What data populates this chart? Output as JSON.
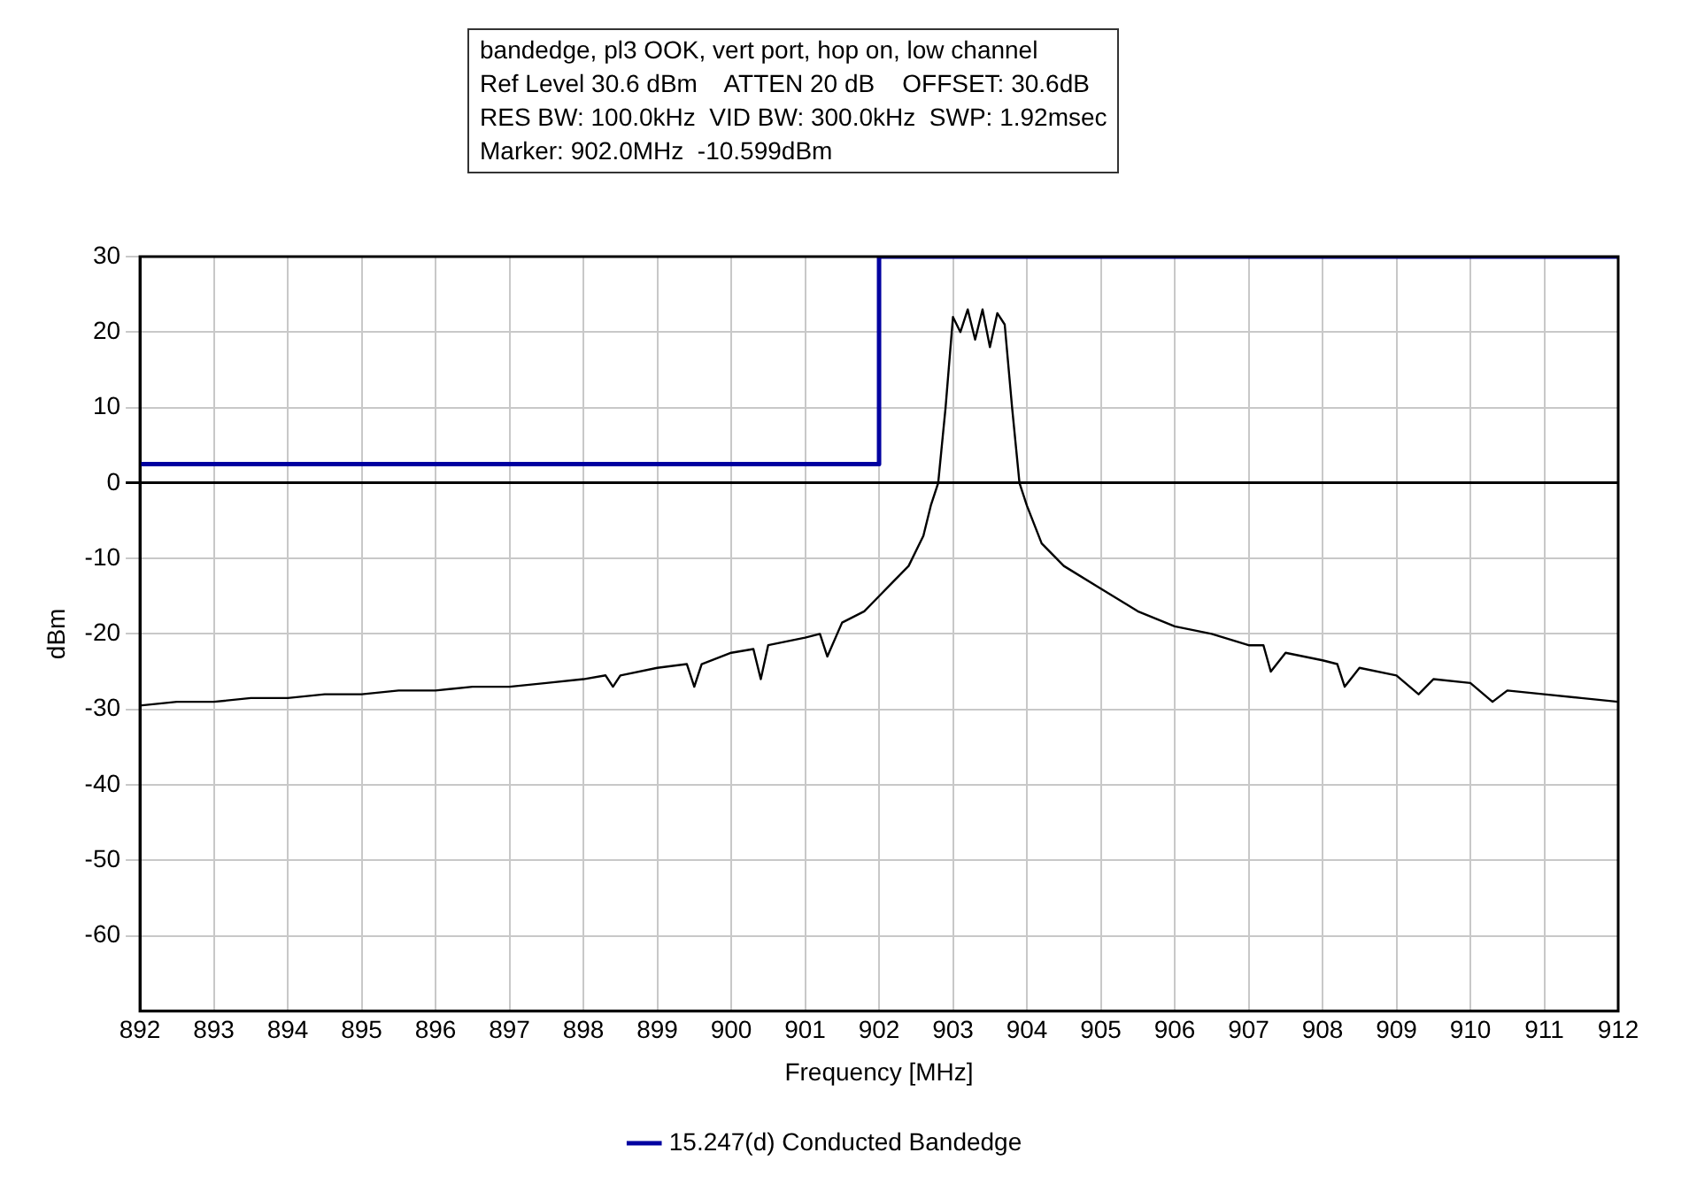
{
  "chart_data": {
    "type": "line",
    "annotations": [
      "bandedge, pl3 OOK, vert port, hop on, low channel",
      "Ref Level 30.6 dBm    ATTEN 20 dB    OFFSET: 30.6dB",
      "RES BW: 100.0kHz  VID BW: 300.0kHz  SWP: 1.92msec",
      "Marker: 902.0MHz  -10.599dBm"
    ],
    "xlabel": "Frequency [MHz]",
    "ylabel": "dBm",
    "xlim": [
      892,
      912
    ],
    "xticks": [
      892,
      893,
      894,
      895,
      896,
      897,
      898,
      899,
      900,
      901,
      902,
      903,
      904,
      905,
      906,
      907,
      908,
      909,
      910,
      911,
      912
    ],
    "ylim": [
      -70,
      30
    ],
    "yticks": [
      -60,
      -50,
      -40,
      -30,
      -20,
      -10,
      0,
      10,
      20,
      30
    ],
    "grid": true,
    "legend": "bottom",
    "marker": "none",
    "line_style": "solid",
    "series": [
      {
        "name": "15.247(d) Conducted Bandedge",
        "type": "step",
        "color": "#0000a0",
        "x": [
          892,
          902,
          912
        ],
        "values": [
          2.5,
          30,
          30
        ]
      },
      {
        "type": "line",
        "color": "#000000",
        "x": [
          892,
          892.5,
          893,
          893.5,
          894,
          894.5,
          895,
          895.5,
          896,
          896.5,
          897,
          897.5,
          898,
          898.3,
          898.4,
          898.5,
          899,
          899.4,
          899.5,
          899.6,
          900,
          900.3,
          900.4,
          900.5,
          901,
          901.2,
          901.3,
          901.5,
          901.8,
          902,
          902.2,
          902.4,
          902.6,
          902.7,
          902.8,
          902.9,
          903,
          903.1,
          903.2,
          903.3,
          903.4,
          903.5,
          903.6,
          903.7,
          903.8,
          903.9,
          904,
          904.2,
          904.5,
          905,
          905.5,
          906,
          906.5,
          907,
          907.2,
          907.3,
          907.5,
          908,
          908.2,
          908.3,
          908.5,
          909,
          909.3,
          909.5,
          910,
          910.3,
          910.5,
          911,
          911.5,
          912
        ],
        "values": [
          -29.5,
          -29,
          -29,
          -28.5,
          -28.5,
          -28,
          -28,
          -27.5,
          -27.5,
          -27,
          -27,
          -26.5,
          -26,
          -25.5,
          -27,
          -25.5,
          -24.5,
          -24,
          -27,
          -24,
          -22.5,
          -22,
          -26,
          -21.5,
          -20.5,
          -20,
          -23,
          -18.5,
          -17,
          -15,
          -13,
          -11,
          -7,
          -3,
          0,
          10,
          22,
          20,
          23,
          19,
          23,
          18,
          22.5,
          21,
          10,
          0,
          -3,
          -8,
          -11,
          -14,
          -17,
          -19,
          -20,
          -21.5,
          -21.5,
          -25,
          -22.5,
          -23.5,
          -24,
          -27,
          -24.5,
          -25.5,
          -28,
          -26,
          -26.5,
          -29,
          -27.5,
          -28,
          -28.5,
          -29
        ]
      }
    ]
  }
}
